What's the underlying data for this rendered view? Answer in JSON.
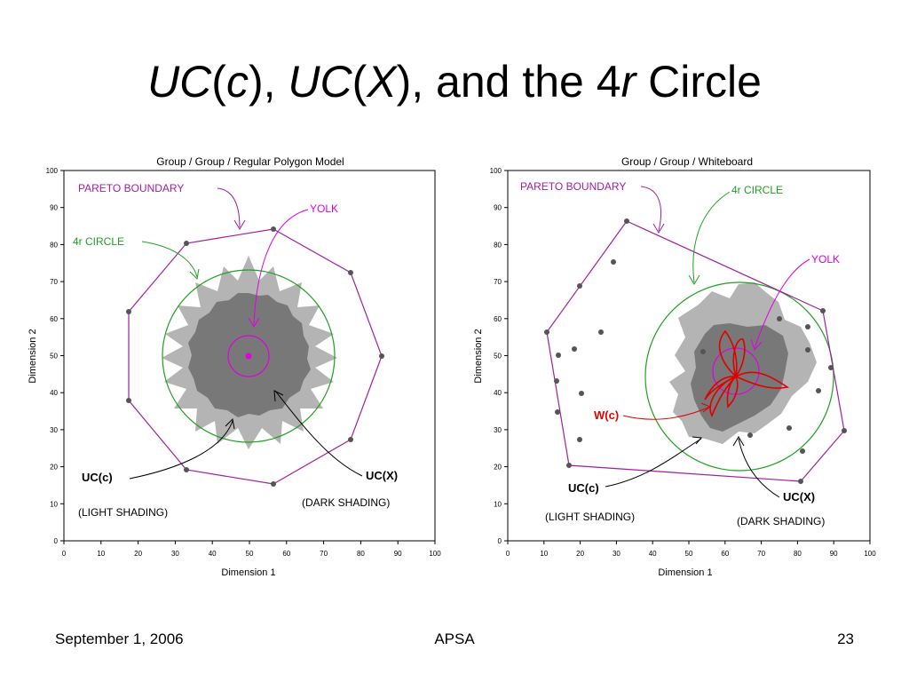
{
  "slide": {
    "title_parts": [
      "UC",
      "(",
      "c",
      "), ",
      "UC",
      "(",
      "X",
      "), and the 4",
      "r",
      " Circle"
    ],
    "footer_date": "September 1, 2006",
    "footer_center": "APSA",
    "footer_page": "23"
  },
  "left_plot": {
    "title": "Group / Group / Regular Polygon Model",
    "xlabel": "Dimension 1",
    "ylabel": "Dimension 2",
    "ticks": [
      "0",
      "10",
      "20",
      "30",
      "40",
      "50",
      "60",
      "70",
      "80",
      "90",
      "100"
    ],
    "labels": {
      "pareto": "PARETO BOUNDARY",
      "yolk": "YOLK",
      "circle": "4r CIRCLE",
      "ucc": "UC(c)",
      "ucc_note": "(LIGHT SHADING)",
      "ucx": "UC(X)",
      "ucx_note": "(DARK SHADING)"
    },
    "colors": {
      "pareto": "#a020a0",
      "yolk": "#e000e0",
      "circle": "#20a020",
      "light": "#b4b4b4",
      "dark": "#787878"
    }
  },
  "right_plot": {
    "title": "Group / Group / Whiteboard",
    "xlabel": "Dimension 1",
    "ylabel": "Dimension 2",
    "ticks": [
      "0",
      "10",
      "20",
      "30",
      "40",
      "50",
      "60",
      "70",
      "80",
      "90",
      "100"
    ],
    "labels": {
      "pareto": "PARETO BOUNDARY",
      "circle": "4r CIRCLE",
      "yolk": "YOLK",
      "wc": "W(c)",
      "ucc": "UC(c)",
      "ucc_note": "(LIGHT SHADING)",
      "ucx": "UC(X)",
      "ucx_note": "(DARK SHADING)"
    },
    "colors": {
      "pareto": "#a020a0",
      "yolk": "#e000e0",
      "circle": "#20a020",
      "wc": "#e00000"
    }
  }
}
